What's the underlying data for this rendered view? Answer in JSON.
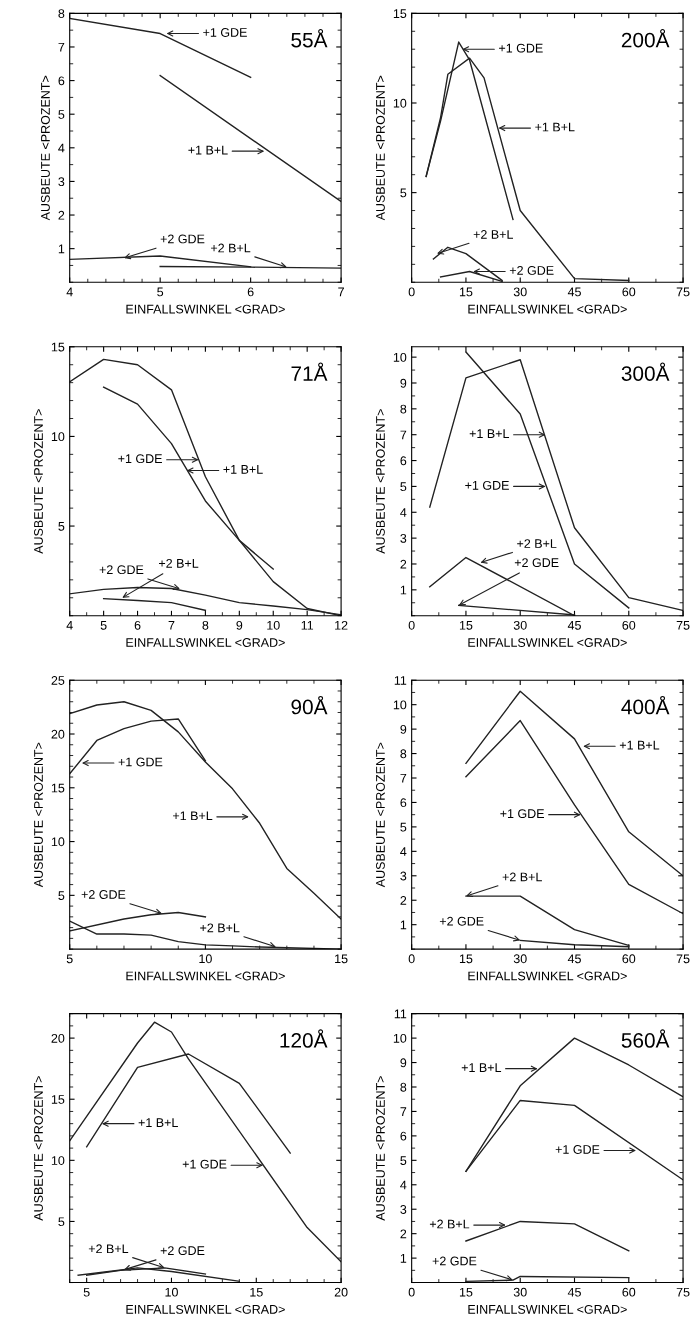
{
  "chart_data": [
    {
      "type": "line",
      "title": "55Å",
      "xlabel": "EINFALLSWINKEL <GRAD>",
      "ylabel": "AUSBEUTE <PROZENT>",
      "xlim": [
        4,
        7
      ],
      "xticks": [
        4,
        5,
        6,
        7
      ],
      "ylim": [
        0,
        8
      ],
      "yticks": [
        1,
        2,
        3,
        4,
        5,
        6,
        7,
        8
      ],
      "series": [
        {
          "color": "#222222",
          "x": [
            4,
            5,
            6
          ],
          "values": [
            7.85,
            7.4,
            6.1
          ]
        },
        {
          "color": "#222222",
          "x": [
            5,
            7
          ],
          "values": [
            6.15,
            2.4
          ]
        },
        {
          "color": "#222222",
          "x": [
            4,
            5,
            6
          ],
          "values": [
            0.68,
            0.78,
            0.46
          ]
        },
        {
          "color": "#222222",
          "x": [
            5,
            6,
            7
          ],
          "values": [
            0.47,
            0.45,
            0.42
          ]
        }
      ],
      "annotations": [
        {
          "text": "+1 GDE",
          "x": 5.07,
          "y": 7.4
        },
        {
          "text": "+1 B+L",
          "x": 6.15,
          "y": 3.9
        },
        {
          "text": "+2 GDE",
          "x": 4.6,
          "y": 0.72
        },
        {
          "text": "+2 B+L",
          "x": 6.4,
          "y": 0.45
        }
      ]
    },
    {
      "type": "line",
      "title": "200Å",
      "xlabel": "EINFALLSWINKEL <GRAD>",
      "ylabel": "AUSBEUTE <PROZENT>",
      "xlim": [
        0,
        75
      ],
      "xticks": [
        0,
        15,
        30,
        45,
        60,
        75
      ],
      "ylim": [
        0,
        15
      ],
      "yticks": [
        5,
        10,
        15
      ],
      "series": [
        {
          "color": "#222222",
          "x": [
            4,
            8,
            13,
            16,
            28
          ],
          "values": [
            5.9,
            9.0,
            13.4,
            12.4,
            3.5
          ]
        },
        {
          "color": "#222222",
          "x": [
            4,
            8,
            10,
            16,
            20,
            30,
            45,
            60
          ],
          "values": [
            5.9,
            9.2,
            11.6,
            12.5,
            11.4,
            4.0,
            0.2,
            0.1
          ]
        },
        {
          "color": "#222222",
          "x": [
            8,
            16,
            25
          ],
          "values": [
            0.3,
            0.6,
            0.05
          ]
        },
        {
          "color": "#222222",
          "x": [
            6,
            10,
            15,
            25
          ],
          "values": [
            1.3,
            1.95,
            1.6,
            0.1
          ]
        }
      ],
      "annotations": [
        {
          "text": "+1 GDE",
          "x": 14,
          "y": 13.0
        },
        {
          "text": "+1 B+L",
          "x": 24,
          "y": 8.6
        },
        {
          "text": "+2 GDE",
          "x": 17,
          "y": 0.6
        },
        {
          "text": "+2 B+L",
          "x": 7,
          "y": 1.6
        }
      ]
    },
    {
      "type": "line",
      "title": "71Å",
      "xlabel": "EINFALLSWINKEL <GRAD>",
      "ylabel": "AUSBEUTE <PROZENT>",
      "xlim": [
        4,
        12
      ],
      "xticks": [
        4,
        5,
        6,
        7,
        8,
        9,
        10,
        11,
        12
      ],
      "ylim": [
        0,
        15
      ],
      "yticks": [
        5,
        10,
        15
      ],
      "series": [
        {
          "color": "#222222",
          "x": [
            4,
            5,
            6,
            7,
            8,
            9,
            10,
            11,
            12
          ],
          "values": [
            13.05,
            14.3,
            14.0,
            12.6,
            7.75,
            4.2,
            1.9,
            0.4,
            0
          ]
        },
        {
          "color": "#222222",
          "x": [
            5,
            6,
            7,
            8,
            9,
            10
          ],
          "values": [
            12.75,
            11.8,
            9.6,
            6.4,
            4.2,
            2.6
          ]
        },
        {
          "color": "#222222",
          "x": [
            4,
            5,
            6,
            7,
            8,
            9,
            10,
            11,
            12
          ],
          "values": [
            1.22,
            1.47,
            1.57,
            1.52,
            1.15,
            0.73,
            0.54,
            0.34,
            0.05
          ]
        },
        {
          "color": "#222222",
          "x": [
            5,
            6,
            7,
            8
          ],
          "values": [
            0.95,
            0.85,
            0.73,
            0.3
          ]
        }
      ],
      "annotations": [
        {
          "text": "+1 GDE",
          "x": 7.8,
          "y": 8.7
        },
        {
          "text": "+1 B+L",
          "x": 7.45,
          "y": 8.1
        },
        {
          "text": "+2 GDE",
          "x": 7.25,
          "y": 1.5
        },
        {
          "text": "+2 B+L",
          "x": 5.55,
          "y": 1.0
        }
      ]
    },
    {
      "type": "line",
      "title": "300Å",
      "xlabel": "EINFALLSWINKEL <GRAD>",
      "ylabel": "AUSBEUTE <PROZENT>",
      "xlim": [
        0,
        75
      ],
      "xticks": [
        0,
        15,
        30,
        45,
        60,
        75
      ],
      "ylim": [
        0,
        10.4
      ],
      "yticks": [
        1,
        2,
        3,
        4,
        5,
        6,
        7,
        8,
        9,
        10
      ],
      "series": [
        {
          "color": "#222222",
          "x": [
            15,
            30,
            45,
            60
          ],
          "values": [
            10.2,
            7.8,
            2.0,
            0.3
          ]
        },
        {
          "color": "#222222",
          "x": [
            5,
            15,
            30,
            45,
            60,
            75
          ],
          "values": [
            4.2,
            9.2,
            9.9,
            3.4,
            0.7,
            0.2
          ]
        },
        {
          "color": "#222222",
          "x": [
            13,
            45
          ],
          "values": [
            0.4,
            0.03
          ]
        },
        {
          "color": "#222222",
          "x": [
            5,
            15,
            45
          ],
          "values": [
            1.12,
            2.25,
            0
          ]
        }
      ],
      "annotations": [
        {
          "text": "+1 GDE",
          "x": 37,
          "y": 5.0
        },
        {
          "text": "+1 B+L",
          "x": 37,
          "y": 7.0
        },
        {
          "text": "+2 GDE",
          "x": 13,
          "y": 0.4
        },
        {
          "text": "+2 B+L",
          "x": 19,
          "y": 2.05
        }
      ]
    },
    {
      "type": "line",
      "title": "90Å",
      "xlabel": "EINFALLSWINKEL <GRAD>",
      "ylabel": "AUSBEUTE <PROZENT>",
      "xlim": [
        5,
        15
      ],
      "xticks": [
        5,
        10,
        15
      ],
      "ylim": [
        0,
        25
      ],
      "yticks": [
        5,
        10,
        15,
        20,
        25
      ],
      "series": [
        {
          "color": "#222222",
          "x": [
            5,
            6,
            7,
            8,
            9,
            10
          ],
          "values": [
            16.3,
            19.4,
            20.5,
            21.2,
            21.4,
            17.5
          ]
        },
        {
          "color": "#222222",
          "x": [
            5,
            6,
            7,
            8,
            9,
            10,
            11,
            12,
            13,
            14,
            15
          ],
          "values": [
            21.9,
            22.7,
            23.0,
            22.2,
            20.2,
            17.4,
            14.9,
            11.7,
            7.5,
            5.2,
            2.8
          ]
        },
        {
          "color": "#222222",
          "x": [
            5,
            7,
            8,
            9,
            10
          ],
          "values": [
            1.7,
            2.8,
            3.2,
            3.4,
            3.0
          ]
        },
        {
          "color": "#222222",
          "x": [
            5,
            6,
            7,
            8,
            9,
            10,
            11,
            12,
            15
          ],
          "values": [
            2.6,
            1.4,
            1.4,
            1.3,
            0.7,
            0.4,
            0.3,
            0.2,
            0
          ]
        }
      ],
      "annotations": [
        {
          "text": "+1 GDE",
          "x": 5.45,
          "y": 17.3
        },
        {
          "text": "+1 B+L",
          "x": 11.6,
          "y": 12.3
        },
        {
          "text": "+2 GDE",
          "x": 8.4,
          "y": 3.3
        },
        {
          "text": "+2 B+L",
          "x": 12.6,
          "y": 0.2
        }
      ]
    },
    {
      "type": "line",
      "title": "400Å",
      "xlabel": "EINFALLSWINKEL <GRAD>",
      "ylabel": "AUSBEUTE <PROZENT>",
      "xlim": [
        0,
        75
      ],
      "xticks": [
        0,
        15,
        30,
        45,
        60,
        75
      ],
      "ylim": [
        0,
        11
      ],
      "yticks": [
        1,
        2,
        3,
        4,
        5,
        6,
        7,
        8,
        9,
        10,
        11
      ],
      "series": [
        {
          "color": "#222222",
          "x": [
            15,
            30,
            45,
            60,
            75
          ],
          "values": [
            7.05,
            9.35,
            5.9,
            2.65,
            1.45
          ]
        },
        {
          "color": "#222222",
          "x": [
            15,
            30,
            45,
            60,
            75
          ],
          "values": [
            7.6,
            10.55,
            8.6,
            4.8,
            3.0
          ]
        },
        {
          "color": "#222222",
          "x": [
            30,
            45,
            60
          ],
          "values": [
            0.36,
            0.18,
            0.1
          ]
        },
        {
          "color": "#222222",
          "x": [
            15,
            30,
            45,
            60
          ],
          "values": [
            2.17,
            2.17,
            0.8,
            0.15
          ]
        }
      ],
      "annotations": [
        {
          "text": "+1 GDE",
          "x": 46.7,
          "y": 5.5
        },
        {
          "text": "+1 B+L",
          "x": 47.4,
          "y": 8.3
        },
        {
          "text": "+2 GDE",
          "x": 30,
          "y": 0.36
        },
        {
          "text": "+2 B+L",
          "x": 15,
          "y": 2.17
        }
      ]
    },
    {
      "type": "line",
      "title": "120Å",
      "xlabel": "EINFALLSWINKEL <GRAD>",
      "ylabel": "AUSBEUTE <PROZENT>",
      "xlim": [
        4,
        20
      ],
      "xticks": [
        5,
        10,
        15,
        20
      ],
      "ylim": [
        0,
        22
      ],
      "yticks": [
        5,
        10,
        15,
        20
      ],
      "series": [
        {
          "color": "#222222",
          "x": [
            4,
            8,
            9,
            10,
            11,
            18,
            20
          ],
          "values": [
            11.6,
            19.6,
            21.3,
            20.5,
            18.3,
            4.5,
            1.7
          ]
        },
        {
          "color": "#222222",
          "x": [
            5,
            8,
            11,
            14,
            17
          ],
          "values": [
            11.1,
            17.6,
            18.7,
            16.3,
            10.6
          ]
        },
        {
          "color": "#222222",
          "x": [
            4.5,
            8,
            10,
            14
          ],
          "values": [
            0.6,
            1.2,
            0.9,
            0.1
          ]
        },
        {
          "color": "#222222",
          "x": [
            5,
            7,
            9.6,
            12
          ],
          "values": [
            0.6,
            1.0,
            1.2,
            0.7
          ]
        }
      ],
      "annotations": [
        {
          "text": "+1 GDE",
          "x": 15.4,
          "y": 9.6
        },
        {
          "text": "+1 B+L",
          "x": 5.9,
          "y": 13.0
        },
        {
          "text": "+2 GDE",
          "x": 7.2,
          "y": 1.05
        },
        {
          "text": "+2 B+L",
          "x": 9.6,
          "y": 1.2
        }
      ]
    },
    {
      "type": "line",
      "title": "560Å",
      "xlabel": "EINFALLSWINKEL <GRAD>",
      "ylabel": "AUSBEUTE <PROZENT>",
      "xlim": [
        0,
        75
      ],
      "xticks": [
        0,
        15,
        30,
        45,
        60,
        75
      ],
      "ylim": [
        0,
        11
      ],
      "yticks": [
        1,
        2,
        3,
        4,
        5,
        6,
        7,
        8,
        9,
        10,
        11
      ],
      "series": [
        {
          "color": "#222222",
          "x": [
            15,
            30,
            45,
            75
          ],
          "values": [
            4.55,
            7.45,
            7.25,
            4.2
          ]
        },
        {
          "color": "#222222",
          "x": [
            15,
            30,
            45,
            60,
            75
          ],
          "values": [
            4.55,
            8.05,
            10.0,
            8.9,
            7.6
          ]
        },
        {
          "color": "#222222",
          "x": [
            15,
            28,
            30,
            60
          ],
          "values": [
            0.05,
            0.1,
            0.25,
            0.2
          ]
        },
        {
          "color": "#222222",
          "x": [
            15,
            30,
            45,
            60
          ],
          "values": [
            1.7,
            2.5,
            2.4,
            1.3
          ]
        }
      ],
      "annotations": [
        {
          "text": "+1 GDE",
          "x": 62,
          "y": 5.4
        },
        {
          "text": "+1 B+L",
          "x": 34.8,
          "y": 8.75
        },
        {
          "text": "+2 GDE",
          "x": 28,
          "y": 0.1
        },
        {
          "text": "+2 B+L",
          "x": 26,
          "y": 2.35
        }
      ]
    }
  ]
}
